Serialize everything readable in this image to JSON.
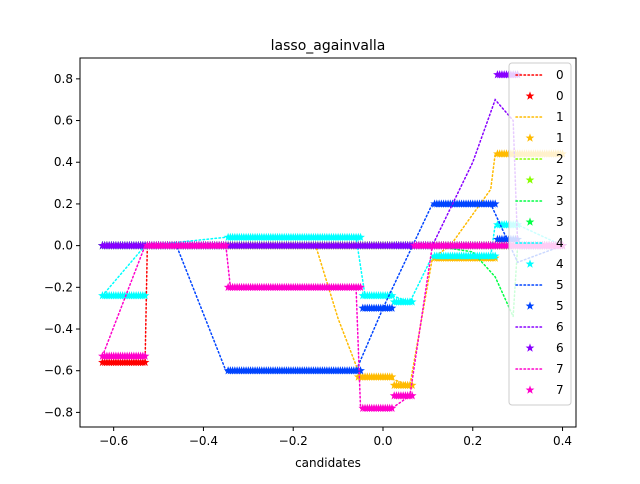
{
  "chart_data": {
    "type": "line",
    "title": "lasso_againvalla",
    "xlabel": "candidates",
    "ylabel": "",
    "xlim": [
      -0.675,
      0.43
    ],
    "ylim": [
      -0.87,
      0.9
    ],
    "xticks": [
      -0.6,
      -0.4,
      -0.2,
      0.0,
      0.2,
      0.4
    ],
    "xtick_labels": [
      "−0.6",
      "−0.4",
      "−0.2",
      "0.0",
      "0.2",
      "0.4"
    ],
    "yticks": [
      -0.8,
      -0.6,
      -0.4,
      -0.2,
      0.0,
      0.2,
      0.4,
      0.6,
      0.8
    ],
    "ytick_labels": [
      "−0.8",
      "−0.6",
      "−0.4",
      "−0.2",
      "0.0",
      "0.2",
      "0.4",
      "0.6",
      "0.8"
    ],
    "grid": false,
    "legend_position": "top-right",
    "x_range": [
      -0.625,
      0.4
    ],
    "x_step": 0.005,
    "series": [
      {
        "name": "0",
        "color": "#ff0000",
        "line": [
          [
            -0.625,
            -0.56
          ],
          [
            -0.53,
            -0.56
          ],
          [
            -0.525,
            0.0
          ],
          [
            0.4,
            0.0
          ]
        ],
        "steps": [
          [
            -0.625,
            -0.53,
            -0.56
          ],
          [
            -0.53,
            0.4,
            0.0
          ]
        ]
      },
      {
        "name": "1",
        "color": "#ffbb00",
        "line": [
          [
            -0.625,
            0.0
          ],
          [
            -0.15,
            0.0
          ],
          [
            -0.1,
            -0.35
          ],
          [
            -0.05,
            -0.63
          ],
          [
            0.02,
            -0.64
          ],
          [
            0.06,
            -0.67
          ],
          [
            0.11,
            -0.06
          ],
          [
            0.15,
            0.0
          ],
          [
            0.24,
            0.27
          ],
          [
            0.25,
            0.44
          ],
          [
            0.4,
            0.44
          ]
        ],
        "steps": [
          [
            -0.625,
            -0.06,
            0.0
          ],
          [
            -0.06,
            0.02,
            -0.63
          ],
          [
            0.02,
            0.065,
            -0.67
          ],
          [
            0.065,
            0.11,
            0.0
          ],
          [
            0.11,
            0.25,
            -0.06
          ],
          [
            0.25,
            0.4,
            0.44
          ]
        ]
      },
      {
        "name": "2",
        "color": "#88ff00",
        "line": [
          [
            -0.625,
            0.0
          ],
          [
            0.4,
            0.0
          ]
        ],
        "steps": [
          [
            -0.625,
            0.4,
            0.0
          ]
        ]
      },
      {
        "name": "3",
        "color": "#00ff44",
        "line": [
          [
            -0.625,
            0.0
          ],
          [
            0.11,
            0.0
          ],
          [
            0.2,
            -0.03
          ],
          [
            0.25,
            -0.15
          ],
          [
            0.29,
            -0.34
          ],
          [
            0.3,
            0.0
          ],
          [
            0.4,
            0.0
          ]
        ],
        "steps": [
          [
            -0.625,
            0.4,
            0.0
          ]
        ]
      },
      {
        "name": "4",
        "color": "#00ffff",
        "line": [
          [
            -0.625,
            -0.24
          ],
          [
            -0.53,
            0.0
          ],
          [
            -0.35,
            0.04
          ],
          [
            -0.06,
            0.04
          ],
          [
            -0.04,
            -0.24
          ],
          [
            0.02,
            -0.24
          ],
          [
            0.06,
            -0.27
          ],
          [
            0.11,
            -0.05
          ],
          [
            0.24,
            -0.05
          ],
          [
            0.25,
            0.1
          ],
          [
            0.3,
            0.1
          ],
          [
            0.4,
            0.0
          ]
        ],
        "steps": [
          [
            -0.625,
            -0.53,
            -0.24
          ],
          [
            -0.53,
            -0.35,
            0.0
          ],
          [
            -0.35,
            -0.05,
            0.04
          ],
          [
            -0.05,
            0.02,
            -0.24
          ],
          [
            0.02,
            0.065,
            -0.27
          ],
          [
            0.065,
            0.11,
            0.0
          ],
          [
            0.11,
            0.25,
            -0.05
          ],
          [
            0.25,
            0.3,
            0.1
          ],
          [
            0.3,
            0.4,
            0.0
          ]
        ]
      },
      {
        "name": "5",
        "color": "#0044ff",
        "line": [
          [
            -0.625,
            0.0
          ],
          [
            -0.46,
            0.0
          ],
          [
            -0.35,
            -0.6
          ],
          [
            -0.06,
            -0.6
          ],
          [
            0.0,
            -0.3
          ],
          [
            0.11,
            0.2
          ],
          [
            0.24,
            0.2
          ],
          [
            0.3,
            -0.08
          ],
          [
            0.4,
            0.0
          ]
        ],
        "steps": [
          [
            -0.625,
            -0.35,
            0.0
          ],
          [
            -0.35,
            -0.05,
            -0.6
          ],
          [
            -0.05,
            0.02,
            -0.3
          ],
          [
            0.02,
            0.11,
            0.0
          ],
          [
            0.11,
            0.25,
            0.2
          ],
          [
            0.25,
            0.3,
            0.03
          ],
          [
            0.3,
            0.4,
            0.0
          ]
        ]
      },
      {
        "name": "6",
        "color": "#8800ff",
        "line": [
          [
            -0.625,
            0.0
          ],
          [
            0.11,
            0.0
          ],
          [
            0.2,
            0.4
          ],
          [
            0.25,
            0.7
          ],
          [
            0.29,
            0.6
          ],
          [
            0.3,
            0.0
          ],
          [
            0.4,
            0.0
          ]
        ],
        "steps": [
          [
            -0.625,
            0.25,
            0.0
          ],
          [
            0.25,
            0.3,
            0.82
          ],
          [
            0.3,
            0.4,
            0.0
          ]
        ]
      },
      {
        "name": "7",
        "color": "#ff00cc",
        "line": [
          [
            -0.625,
            -0.53
          ],
          [
            -0.53,
            0.0
          ],
          [
            -0.35,
            0.0
          ],
          [
            -0.34,
            -0.2
          ],
          [
            -0.06,
            -0.2
          ],
          [
            -0.05,
            -0.78
          ],
          [
            0.02,
            -0.78
          ],
          [
            0.06,
            -0.72
          ],
          [
            0.11,
            0.0
          ],
          [
            0.4,
            0.0
          ]
        ],
        "steps": [
          [
            -0.625,
            -0.53,
            -0.53
          ],
          [
            -0.53,
            -0.35,
            0.0
          ],
          [
            -0.35,
            -0.05,
            -0.2
          ],
          [
            -0.05,
            0.02,
            -0.78
          ],
          [
            0.02,
            0.065,
            -0.72
          ],
          [
            0.065,
            0.4,
            0.0
          ]
        ]
      }
    ]
  }
}
